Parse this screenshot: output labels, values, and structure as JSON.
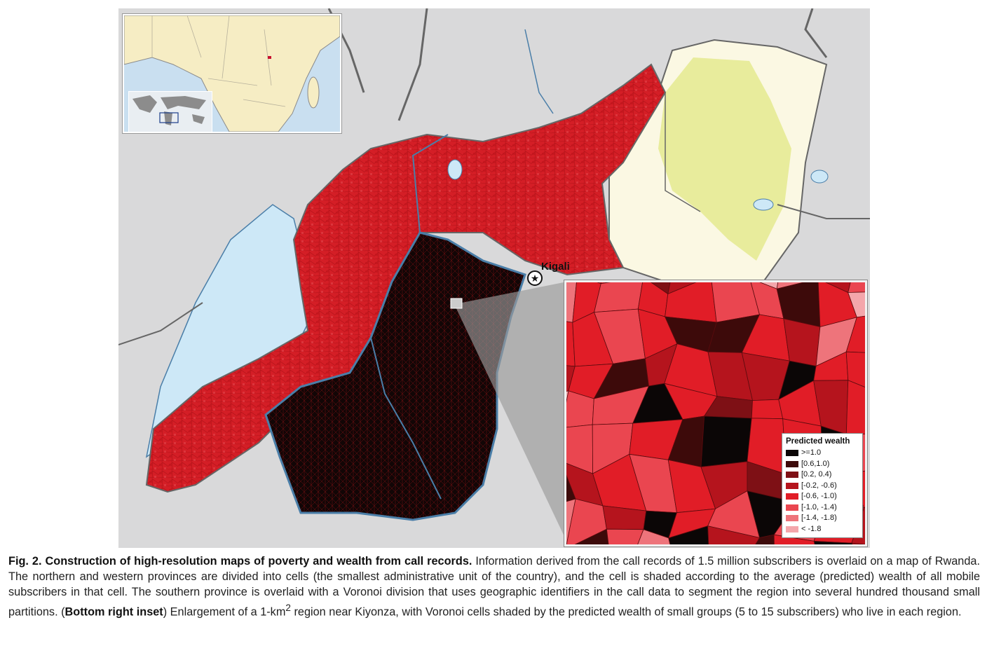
{
  "map": {
    "city_label": "Kigali",
    "city_marker_icon": "star-circle-icon",
    "colors": {
      "lake": "#cde8f7",
      "border": "#666666",
      "river": "#4a7ea8",
      "neighbor_land": "#d9d9da",
      "eastern_province": "#fbf8e3",
      "park": "#e8ec9c",
      "south_province": "#0a0606"
    }
  },
  "legend": {
    "title": "Predicted wealth",
    "items": [
      {
        "label": ">=1.0",
        "color": "#0b0606"
      },
      {
        "label": "[0.6,1.0)",
        "color": "#3d0a0a"
      },
      {
        "label": "[0.2, 0.4)",
        "color": "#7e1015"
      },
      {
        "label": "[-0.2, -0.6)",
        "color": "#b5141d"
      },
      {
        "label": "[-0.6, -1.0)",
        "color": "#e11d27"
      },
      {
        "label": "[-1.0, -1.4)",
        "color": "#ea4650"
      },
      {
        "label": "[-1.4, -1.8)",
        "color": "#ee747b"
      },
      {
        "label": "< -1.8",
        "color": "#f4a6ab"
      }
    ]
  },
  "caption": {
    "lead": "Fig. 2. Construction of high-resolution maps of poverty and wealth from call records.",
    "body1": " Information derived from the call records of 1.5 million subscribers is overlaid on a map of Rwanda. The northern and western provinces are divided into cells (the smallest administrative unit of the country), and the cell is shaded according to the average (predicted) wealth of all mobile subscribers in that cell. The southern province is overlaid with a Voronoi division that uses geographic identifiers in the call data to segment the region into several hundred thousand small partitions. (",
    "inset_ref": "Bottom right inset",
    "body2": ") Enlargement of a 1-km",
    "superscript": "2",
    "body3": " region near Kiyonza, with Voronoi cells shaded by the predicted wealth of small groups (5 to 15 subscribers) who live in each region."
  }
}
